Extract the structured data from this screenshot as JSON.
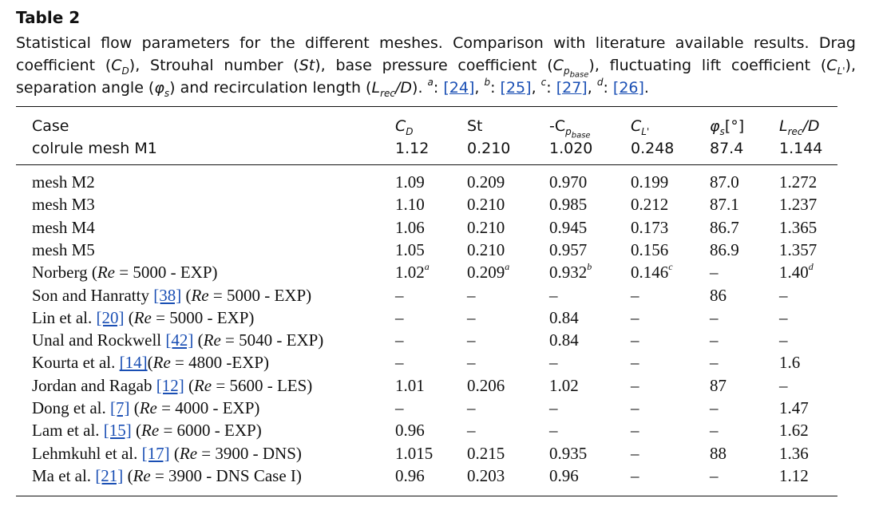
{
  "table": {
    "title": "Table 2",
    "caption": {
      "part1": "Statistical flow parameters for the different meshes. Comparison with literature available results. Drag coefficient (",
      "cd_sym": "C",
      "cd_sub": "D",
      "part2": "), Strouhal number (",
      "st_sym": "St",
      "part3": "), base pressure coefficient (",
      "cp_sym": "C",
      "cp_sub": "p",
      "cp_subsub": "base",
      "part4": "), fluctuating lift coefficient (",
      "cl_sym": "C",
      "cl_sub": "L'",
      "part5": "), separation angle (",
      "phi_sym": "φ",
      "phi_sub": "s",
      "part6": ") and recirculation length (",
      "lrec_sym": "L",
      "lrec_sub": "rec",
      "lrec_slash": "/D",
      "part7": "). ",
      "refs": [
        {
          "mark": "a",
          "sep": ": ",
          "ref": "[24]",
          "after": ", "
        },
        {
          "mark": "b",
          "sep": ": ",
          "ref": "[25]",
          "after": ", "
        },
        {
          "mark": "c",
          "sep": ": ",
          "ref": "[27]",
          "after": ", "
        },
        {
          "mark": "d",
          "sep": ": ",
          "ref": "[26]",
          "after": "."
        }
      ]
    },
    "header": {
      "case": "Case",
      "cd": "C",
      "cd_sub": "D",
      "st": "St",
      "cp_prefix": "-C",
      "cp_sub": "p",
      "cp_subsub": "base",
      "cl": "C",
      "cl_sub": "L'",
      "phi": "φ",
      "phi_sub": "s",
      "phi_unit": "[°]",
      "lrec": "L",
      "lrec_sub": "rec",
      "lrec_slash": "/D"
    },
    "baseline": {
      "case": "colrule mesh M1",
      "cd": "1.12",
      "st": "0.210",
      "cp": "1.020",
      "cl": "0.248",
      "phi": "87.4",
      "lrec": "1.144"
    },
    "rows": [
      {
        "pre": "mesh M2",
        "ref": "",
        "post": "",
        "cd": "1.09",
        "st": "0.209",
        "cp": "0.970",
        "cl": "0.199",
        "phi": "87.0",
        "lrec": "1.272"
      },
      {
        "pre": "mesh M3",
        "ref": "",
        "post": "",
        "cd": "1.10",
        "st": "0.210",
        "cp": "0.985",
        "cl": "0.212",
        "phi": "87.1",
        "lrec": "1.237"
      },
      {
        "pre": "mesh M4",
        "ref": "",
        "post": "",
        "cd": "1.06",
        "st": "0.210",
        "cp": "0.945",
        "cl": "0.173",
        "phi": "86.7",
        "lrec": "1.365"
      },
      {
        "pre": "mesh M5",
        "ref": "",
        "post": "",
        "cd": "1.05",
        "st": "0.210",
        "cp": "0.957",
        "cl": "0.156",
        "phi": "86.9",
        "lrec": "1.357"
      },
      {
        "pre": "Norberg ",
        "ref": "",
        "post": "(Re = 5000 - EXP)",
        "cd": "1.02",
        "cd_sup": "a",
        "st": "0.209",
        "st_sup": "a",
        "cp": "0.932",
        "cp_sup": "b",
        "cl": "0.146",
        "cl_sup": "c",
        "phi": "–",
        "lrec": "1.40",
        "lrec_sup": "d"
      },
      {
        "pre": "Son and Hanratty ",
        "ref": "[38]",
        "post": " (Re = 5000 - EXP)",
        "cd": "–",
        "st": "–",
        "cp": "–",
        "cl": "–",
        "phi": "86",
        "lrec": "–"
      },
      {
        "pre": "Lin et al. ",
        "ref": "[20]",
        "post": " (Re = 5000 - EXP)",
        "cd": "–",
        "st": "–",
        "cp": "0.84",
        "cl": "–",
        "phi": "–",
        "lrec": "–"
      },
      {
        "pre": "Unal and Rockwell ",
        "ref": "[42]",
        "post": " (Re = 5040 - EXP)",
        "cd": "–",
        "st": "–",
        "cp": "0.84",
        "cl": "–",
        "phi": "–",
        "lrec": "–"
      },
      {
        "pre": "Kourta et al. ",
        "ref": "[14]",
        "post": "(Re = 4800 -EXP)",
        "cd": "–",
        "st": "–",
        "cp": "–",
        "cl": "–",
        "phi": "–",
        "lrec": "1.6"
      },
      {
        "pre": "Jordan and Ragab ",
        "ref": "[12]",
        "post": " (Re = 5600 - LES)",
        "cd": "1.01",
        "st": "0.206",
        "cp": "1.02",
        "cl": "–",
        "phi": "87",
        "lrec": "–"
      },
      {
        "pre": "Dong et al. ",
        "ref": "[7]",
        "post": " (Re = 4000 - EXP)",
        "cd": "–",
        "st": "–",
        "cp": "–",
        "cl": "–",
        "phi": "–",
        "lrec": "1.47"
      },
      {
        "pre": "Lam et al. ",
        "ref": "[15]",
        "post": " (Re = 6000 - EXP)",
        "cd": "0.96",
        "st": "–",
        "cp": "–",
        "cl": "–",
        "phi": "–",
        "lrec": "1.62"
      },
      {
        "pre": "Lehmkuhl et al. ",
        "ref": "[17]",
        "post": " (Re = 3900 - DNS)",
        "cd": "1.015",
        "st": "0.215",
        "cp": "0.935",
        "cl": "–",
        "phi": "88",
        "lrec": "1.36"
      },
      {
        "pre": "Ma et al. ",
        "ref": "[21]",
        "post": " (Re = 3900 - DNS Case I)",
        "cd": "0.96",
        "st": "0.203",
        "cp": "0.96",
        "cl": "–",
        "phi": "–",
        "lrec": "1.12"
      }
    ]
  }
}
